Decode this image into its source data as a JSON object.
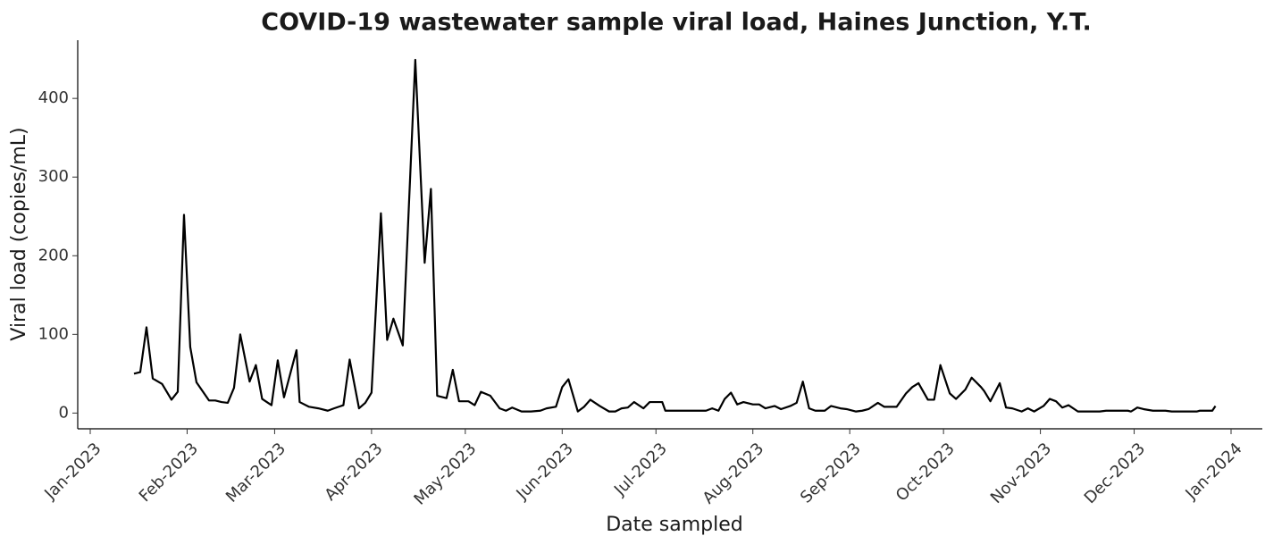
{
  "chart_data": {
    "type": "line",
    "title": "COVID-19 wastewater sample viral load, Haines Junction, Y.T.",
    "x_label": "Date sampled",
    "y_label": "Viral load (copies/mL)",
    "color": "#000000",
    "x": [
      14,
      16,
      18,
      20,
      23,
      26,
      28,
      30,
      32,
      34,
      38,
      40,
      42,
      44,
      46,
      48,
      51,
      53,
      55,
      58,
      60,
      62,
      66,
      67,
      70,
      73,
      76,
      78,
      81,
      83,
      86,
      88,
      90,
      93,
      95,
      97,
      100,
      104,
      107,
      109,
      111,
      114,
      116,
      118,
      121,
      123,
      125,
      128,
      131,
      133,
      135,
      138,
      141,
      144,
      146,
      149,
      151,
      153,
      156,
      158,
      160,
      163,
      166,
      168,
      170,
      172,
      174,
      177,
      179,
      183,
      184,
      197,
      199,
      201,
      203,
      205,
      207,
      209,
      212,
      214,
      216,
      219,
      221,
      224,
      226,
      228,
      230,
      232,
      235,
      237,
      240,
      242,
      245,
      247,
      249,
      252,
      254,
      258,
      261,
      263,
      265,
      268,
      270,
      272,
      275,
      277,
      280,
      282,
      285,
      286,
      288,
      291,
      293,
      295,
      298,
      300,
      302,
      305,
      307,
      309,
      311,
      313,
      316,
      323,
      325,
      332,
      333,
      335,
      337,
      340,
      344,
      346,
      354,
      355,
      359,
      360
    ],
    "values": [
      50,
      52,
      109,
      44,
      37,
      17,
      27,
      252,
      84,
      39,
      16,
      16,
      14,
      13,
      32,
      100,
      40,
      61,
      18,
      10,
      67,
      20,
      80,
      14,
      8,
      6,
      3,
      6,
      10,
      68,
      6,
      13,
      26,
      254,
      93,
      120,
      86,
      449,
      191,
      285,
      22,
      19,
      55,
      15,
      15,
      10,
      27,
      22,
      6,
      3,
      7,
      2,
      2,
      3,
      6,
      8,
      33,
      43,
      2,
      8,
      17,
      9,
      2,
      2,
      6,
      7,
      14,
      6,
      14,
      14,
      3,
      3,
      6,
      3,
      18,
      26,
      11,
      14,
      11,
      11,
      6,
      9,
      5,
      9,
      13,
      40,
      6,
      3,
      3,
      9,
      6,
      5,
      2,
      3,
      5,
      13,
      8,
      8,
      25,
      33,
      38,
      17,
      17,
      61,
      25,
      18,
      30,
      45,
      33,
      28,
      15,
      38,
      7,
      6,
      2,
      6,
      2,
      9,
      18,
      15,
      7,
      10,
      2,
      2,
      3,
      3,
      2,
      7,
      5,
      3,
      3,
      2,
      2,
      3,
      3,
      9
    ],
    "xlim": [
      -4,
      375
    ],
    "xticks": [
      {
        "value": 0,
        "label": "Jan-2023"
      },
      {
        "value": 31,
        "label": "Feb-2023"
      },
      {
        "value": 59,
        "label": "Mar-2023"
      },
      {
        "value": 90,
        "label": "Apr-2023"
      },
      {
        "value": 120,
        "label": "May-2023"
      },
      {
        "value": 151,
        "label": "Jun-2023"
      },
      {
        "value": 181,
        "label": "Jul-2023"
      },
      {
        "value": 212,
        "label": "Aug-2023"
      },
      {
        "value": 243,
        "label": "Sep-2023"
      },
      {
        "value": 273,
        "label": "Oct-2023"
      },
      {
        "value": 304,
        "label": "Nov-2023"
      },
      {
        "value": 334,
        "label": "Dec-2023"
      },
      {
        "value": 365,
        "label": "Jan-2024"
      }
    ],
    "ylim": [
      -20,
      474
    ],
    "yticks": [
      0,
      100,
      200,
      300,
      400
    ],
    "grid": false
  }
}
